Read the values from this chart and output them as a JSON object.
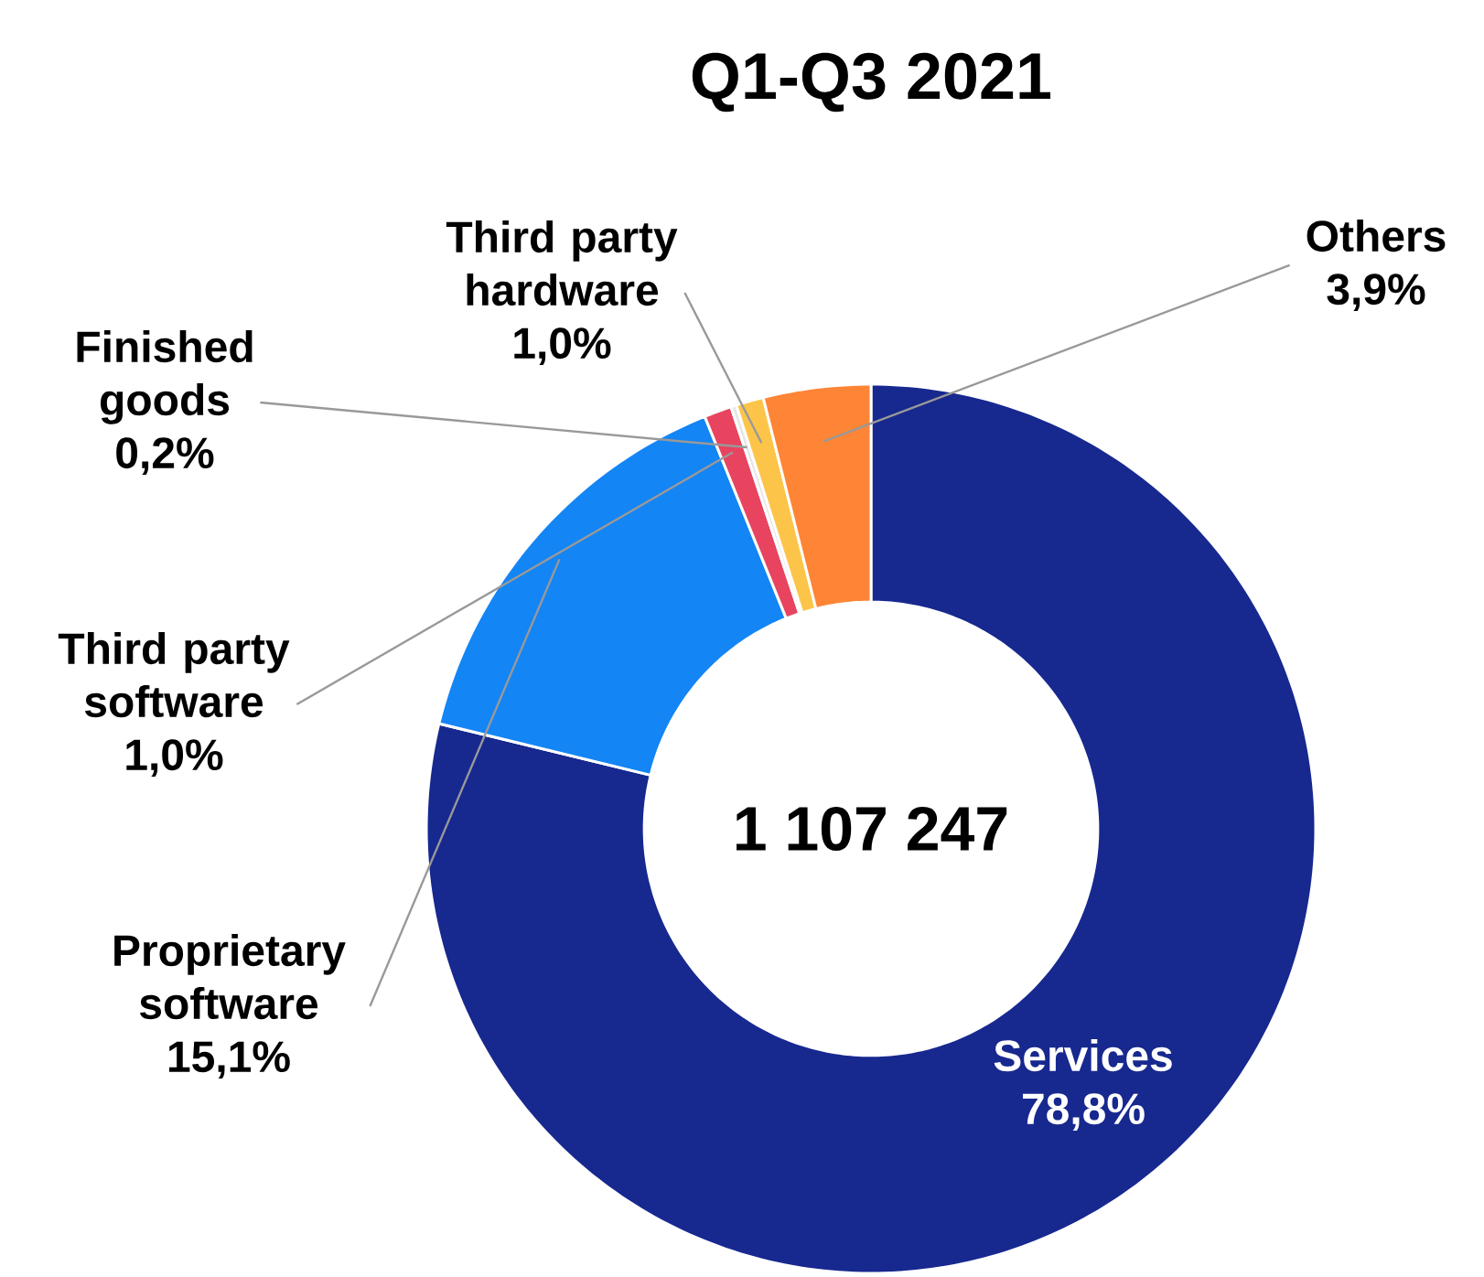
{
  "chart_data": {
    "type": "donut",
    "title": "Q1-Q3 2021",
    "categories": [
      "Services",
      "Proprietary software",
      "Third party software",
      "Finished goods",
      "Third party hardware",
      "Others"
    ],
    "values": [
      78.8,
      15.1,
      1.0,
      0.2,
      1.0,
      3.9
    ],
    "colors": [
      "#17288f",
      "#1385f5",
      "#e8445f",
      "#e6e6e6",
      "#fcc54a",
      "#fd8535"
    ],
    "value_labels": [
      "78,8%",
      "15,1%",
      "1,0%",
      "0,2%",
      "1,0%",
      "3,9%"
    ],
    "annotations": [
      "1 107 247"
    ]
  }
}
